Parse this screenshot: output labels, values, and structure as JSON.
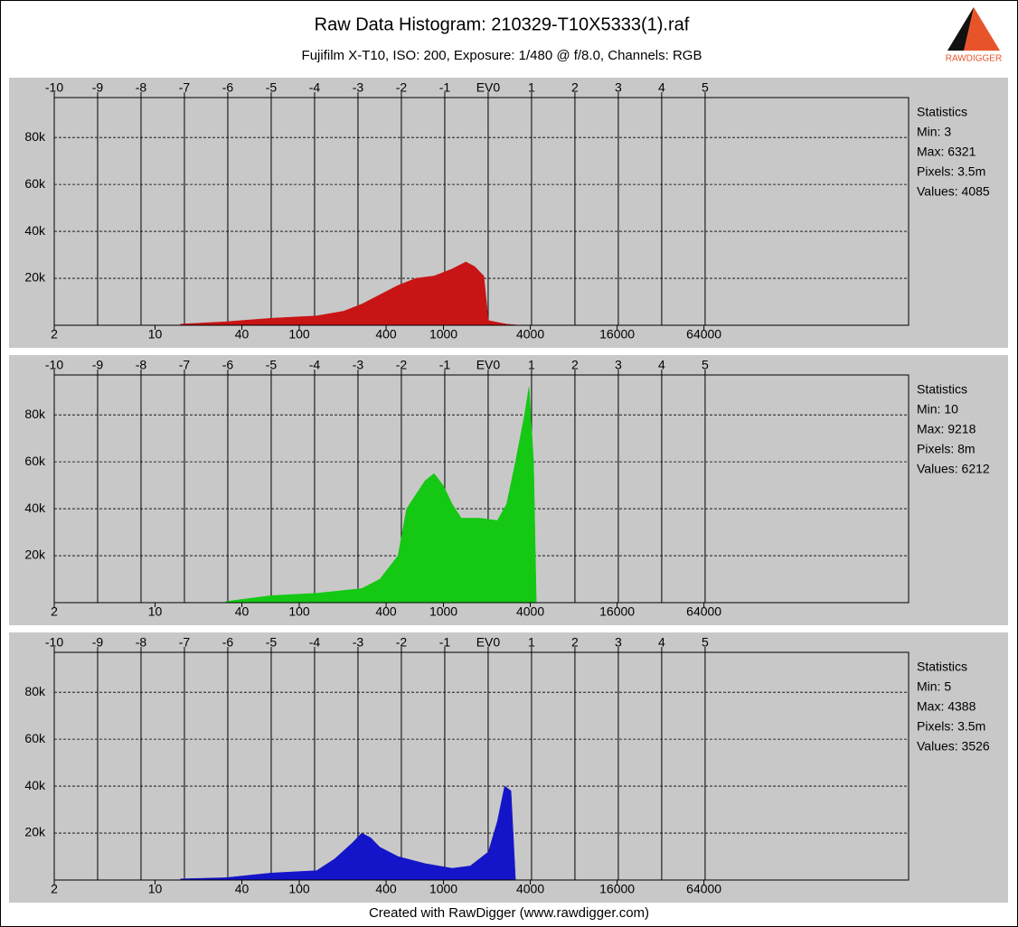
{
  "header": {
    "title": "Raw Data Histogram: 210329-T10X5333(1).raf",
    "subtitle": "Fujifilm X-T10, ISO: 200, Exposure: 1/480 @ f/8.0, Channels: RGB",
    "logo": "RAWDIGGER"
  },
  "footer": "Created with RawDigger (www.rawdigger.com)",
  "chart_data": [
    {
      "type": "area",
      "color": "#c81414",
      "log_x": 2,
      "x": [
        15,
        31,
        64,
        132,
        203,
        271,
        362,
        484,
        645,
        861,
        1149,
        1429,
        1647,
        1904,
        2048,
        2741,
        3393
      ],
      "values": [
        500,
        1500,
        3000,
        4000,
        6000,
        9000,
        13000,
        17000,
        20000,
        21000,
        24000,
        27000,
        25000,
        21000,
        2000,
        500,
        0
      ],
      "xlim": [
        2,
        1680000
      ],
      "xticks": [
        2,
        10,
        40,
        100,
        400,
        1000,
        4000,
        16000,
        64000
      ],
      "x2lim": [
        -10,
        9.69
      ],
      "x2ticks": [
        -10,
        -9,
        -8,
        -7,
        -6,
        -5,
        -4,
        -3,
        -2,
        -1,
        {
          "value": 0,
          "label": "EV0"
        },
        1,
        2,
        3,
        4,
        5
      ],
      "ylim": [
        0,
        97000
      ],
      "yticks": [
        {
          "value": 20000,
          "label": "20k"
        },
        {
          "value": 40000,
          "label": "40k"
        },
        {
          "value": 60000,
          "label": "60k"
        },
        {
          "value": 80000,
          "label": "80k"
        }
      ],
      "grid": true,
      "stats": [
        "Statistics",
        "Min: 3",
        "Max: 6321",
        "Pixels: 3.5m",
        "Values: 4085"
      ]
    },
    {
      "type": "area",
      "color": "#14c814",
      "log_x": 2,
      "x": [
        31,
        64,
        132,
        271,
        362,
        484,
        555,
        746,
        861,
        995,
        1149,
        1328,
        1774,
        2365,
        2741,
        3158,
        3649,
        3920,
        4215,
        4403
      ],
      "values": [
        500,
        3000,
        4000,
        6000,
        10000,
        20000,
        40000,
        52000,
        55000,
        50000,
        42000,
        36000,
        36000,
        35000,
        42000,
        60000,
        80000,
        92000,
        60000,
        0
      ],
      "xlim": [
        2,
        1680000
      ],
      "xticks": [
        2,
        10,
        40,
        100,
        400,
        1000,
        4000,
        16000,
        64000
      ],
      "x2lim": [
        -10,
        9.69
      ],
      "x2ticks": [
        -10,
        -9,
        -8,
        -7,
        -6,
        -5,
        -4,
        -3,
        -2,
        -1,
        {
          "value": 0,
          "label": "EV0"
        },
        1,
        2,
        3,
        4,
        5
      ],
      "ylim": [
        0,
        97000
      ],
      "yticks": [
        {
          "value": 20000,
          "label": "20k"
        },
        {
          "value": 40000,
          "label": "40k"
        },
        {
          "value": 60000,
          "label": "60k"
        },
        {
          "value": 80000,
          "label": "80k"
        }
      ],
      "grid": true,
      "stats": [
        "Statistics",
        "Min: 10",
        "Max: 9218",
        "Pixels: 8m",
        "Values: 6212"
      ]
    },
    {
      "type": "area",
      "color": "#1414c8",
      "log_x": 2,
      "x": [
        15,
        31,
        64,
        132,
        176,
        235,
        271,
        313,
        362,
        484,
        746,
        1149,
        1534,
        2048,
        2365,
        2656,
        2939,
        3158
      ],
      "values": [
        500,
        1000,
        3000,
        4000,
        9000,
        16000,
        20000,
        18000,
        14000,
        10000,
        7000,
        5000,
        6000,
        12000,
        25000,
        40000,
        38000,
        0
      ],
      "xlim": [
        2,
        1680000
      ],
      "xticks": [
        2,
        10,
        40,
        100,
        400,
        1000,
        4000,
        16000,
        64000
      ],
      "x2lim": [
        -10,
        9.69
      ],
      "x2ticks": [
        -10,
        -9,
        -8,
        -7,
        -6,
        -5,
        -4,
        -3,
        -2,
        -1,
        {
          "value": 0,
          "label": "EV0"
        },
        1,
        2,
        3,
        4,
        5
      ],
      "ylim": [
        0,
        97000
      ],
      "yticks": [
        {
          "value": 20000,
          "label": "20k"
        },
        {
          "value": 40000,
          "label": "40k"
        },
        {
          "value": 60000,
          "label": "60k"
        },
        {
          "value": 80000,
          "label": "80k"
        }
      ],
      "grid": true,
      "stats": [
        "Statistics",
        "Min: 5",
        "Max: 4388",
        "Pixels: 3.5m",
        "Values: 3526"
      ]
    }
  ]
}
